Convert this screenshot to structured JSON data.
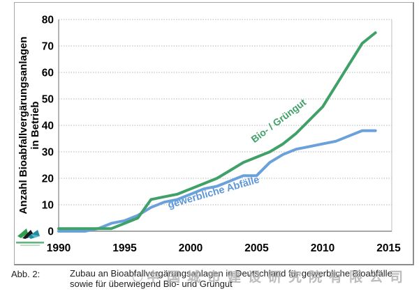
{
  "y_axis": {
    "title_line1": "Anzahl Bioabfallvergärungsanlagen",
    "title_line2": "in Betrieb"
  },
  "series_labels": {
    "green": "Bio- / Grüngut",
    "blue": "gewerbliche Abfälle"
  },
  "chart_data": {
    "type": "line",
    "title": "",
    "xlabel": "",
    "ylabel": "Anzahl Bioabfallvergärungsanlagen in Betrieb",
    "x": [
      1990,
      1991,
      1992,
      1993,
      1994,
      1995,
      1996,
      1997,
      1998,
      1999,
      2000,
      2001,
      2002,
      2003,
      2004,
      2005,
      2006,
      2007,
      2008,
      2009,
      2010,
      2011,
      2012,
      2013,
      2014
    ],
    "series": [
      {
        "name": "gewerbliche Abfälle",
        "color": "#6BA1DB",
        "values": [
          0,
          0,
          0,
          1,
          3,
          4,
          6,
          9,
          11,
          12,
          14,
          16,
          17,
          19,
          21,
          21,
          26,
          29,
          31,
          32,
          33,
          34,
          36,
          38,
          38
        ]
      },
      {
        "name": "Bio- / Grüngut",
        "color": "#3FA068",
        "values": [
          1,
          1,
          1,
          1,
          1,
          3,
          5,
          12,
          13,
          14,
          16,
          18,
          20,
          23,
          26,
          28,
          30,
          33,
          37,
          42,
          47,
          55,
          63,
          71,
          75
        ]
      }
    ],
    "xlim": [
      1990,
      2016.3
    ],
    "ylim": [
      0,
      80
    ],
    "x_ticks": [
      1990,
      1995,
      2000,
      2005,
      2010,
      2015
    ],
    "y_ticks": [
      0,
      10,
      20,
      30,
      40,
      50,
      60,
      70,
      80
    ],
    "grid": true,
    "grid_style": "dotted",
    "legend_position": "inline rotated labels on lines"
  },
  "caption": {
    "label": "Abb. 2:",
    "line1": "Zubau an Bioabfallvergärungsanlagen in Deutschland für gewerbliche Bioabfälle",
    "line2": "sowie für überwiegend Bio- und Grüngut"
  },
  "watermark": {
    "text": "中国城市建设研究院有限公司"
  },
  "colors": {
    "grid": "#b5b5b5",
    "axis": "#8c8c8c",
    "plot_right_border": "#c9c9c9",
    "tick_text": "#000000",
    "logo_green": "#2e9e4f",
    "logo_black": "#1a1a1a",
    "logo_teal": "#1d8fa0"
  }
}
